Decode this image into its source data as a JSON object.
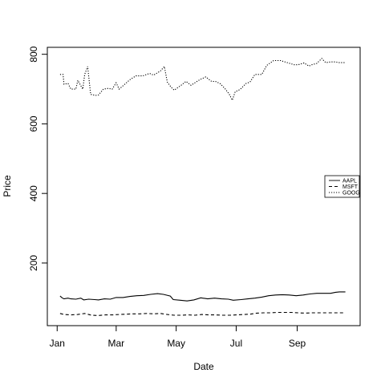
{
  "chart_data": {
    "type": "line",
    "title": "",
    "xlabel": "Date",
    "ylabel": "Price",
    "x_ticks": [
      "Jan",
      "Mar",
      "May",
      "Jul",
      "Sep"
    ],
    "y_ticks": [
      "200",
      "400",
      "600",
      "800"
    ],
    "ylim": [
      20,
      820
    ],
    "grid": false,
    "legend_position": "right",
    "series": [
      {
        "name": "AAPL",
        "line_style": "solid",
        "points": [
          [
            "2016-01-04",
            105
          ],
          [
            "2016-01-06",
            100
          ],
          [
            "2016-01-08",
            97
          ],
          [
            "2016-01-12",
            99
          ],
          [
            "2016-01-15",
            97
          ],
          [
            "2016-01-20",
            96
          ],
          [
            "2016-01-25",
            99
          ],
          [
            "2016-01-28",
            94
          ],
          [
            "2016-02-02",
            96
          ],
          [
            "2016-02-08",
            95
          ],
          [
            "2016-02-12",
            94
          ],
          [
            "2016-02-18",
            97
          ],
          [
            "2016-02-24",
            96
          ],
          [
            "2016-03-01",
            101
          ],
          [
            "2016-03-08",
            101
          ],
          [
            "2016-03-15",
            104
          ],
          [
            "2016-03-22",
            106
          ],
          [
            "2016-03-29",
            107
          ],
          [
            "2016-04-05",
            110
          ],
          [
            "2016-04-12",
            112
          ],
          [
            "2016-04-18",
            110
          ],
          [
            "2016-04-25",
            105
          ],
          [
            "2016-04-28",
            95
          ],
          [
            "2016-05-05",
            93
          ],
          [
            "2016-05-12",
            91
          ],
          [
            "2016-05-19",
            94
          ],
          [
            "2016-05-26",
            100
          ],
          [
            "2016-06-02",
            97
          ],
          [
            "2016-06-09",
            99
          ],
          [
            "2016-06-16",
            97
          ],
          [
            "2016-06-23",
            96
          ],
          [
            "2016-06-28",
            93
          ],
          [
            "2016-07-06",
            95
          ],
          [
            "2016-07-13",
            97
          ],
          [
            "2016-07-20",
            99
          ],
          [
            "2016-07-27",
            102
          ],
          [
            "2016-08-03",
            106
          ],
          [
            "2016-08-10",
            108
          ],
          [
            "2016-08-17",
            109
          ],
          [
            "2016-08-24",
            108
          ],
          [
            "2016-08-31",
            106
          ],
          [
            "2016-09-07",
            108
          ],
          [
            "2016-09-14",
            111
          ],
          [
            "2016-09-21",
            113
          ],
          [
            "2016-09-28",
            113
          ],
          [
            "2016-10-05",
            113
          ],
          [
            "2016-10-10",
            116
          ],
          [
            "2016-10-14",
            117
          ],
          [
            "2016-10-17",
            117
          ],
          [
            "2016-10-20",
            117
          ]
        ]
      },
      {
        "name": "MSFT",
        "line_style": "dashed",
        "points": [
          [
            "2016-01-04",
            55
          ],
          [
            "2016-01-08",
            52
          ],
          [
            "2016-01-15",
            51
          ],
          [
            "2016-01-22",
            52
          ],
          [
            "2016-01-29",
            55
          ],
          [
            "2016-02-05",
            50
          ],
          [
            "2016-02-12",
            49
          ],
          [
            "2016-02-19",
            51
          ],
          [
            "2016-02-26",
            51
          ],
          [
            "2016-03-04",
            52
          ],
          [
            "2016-03-11",
            53
          ],
          [
            "2016-03-18",
            54
          ],
          [
            "2016-03-25",
            54
          ],
          [
            "2016-04-01",
            55
          ],
          [
            "2016-04-08",
            54
          ],
          [
            "2016-04-15",
            55
          ],
          [
            "2016-04-22",
            52
          ],
          [
            "2016-04-29",
            50
          ],
          [
            "2016-05-06",
            50
          ],
          [
            "2016-05-13",
            51
          ],
          [
            "2016-05-20",
            50
          ],
          [
            "2016-05-27",
            52
          ],
          [
            "2016-06-03",
            51
          ],
          [
            "2016-06-10",
            51
          ],
          [
            "2016-06-17",
            50
          ],
          [
            "2016-06-24",
            50
          ],
          [
            "2016-07-01",
            51
          ],
          [
            "2016-07-08",
            52
          ],
          [
            "2016-07-15",
            53
          ],
          [
            "2016-07-22",
            56
          ],
          [
            "2016-07-29",
            57
          ],
          [
            "2016-08-05",
            57
          ],
          [
            "2016-08-12",
            58
          ],
          [
            "2016-08-19",
            58
          ],
          [
            "2016-08-26",
            58
          ],
          [
            "2016-09-02",
            57
          ],
          [
            "2016-09-09",
            56
          ],
          [
            "2016-09-16",
            57
          ],
          [
            "2016-09-23",
            57
          ],
          [
            "2016-09-30",
            57
          ],
          [
            "2016-10-07",
            57
          ],
          [
            "2016-10-14",
            57
          ],
          [
            "2016-10-20",
            57
          ]
        ]
      },
      {
        "name": "GOOG",
        "line_style": "dotted",
        "points": [
          [
            "2016-01-04",
            742
          ],
          [
            "2016-01-07",
            742
          ],
          [
            "2016-01-08",
            714
          ],
          [
            "2016-01-12",
            716
          ],
          [
            "2016-01-15",
            700
          ],
          [
            "2016-01-20",
            700
          ],
          [
            "2016-01-22",
            725
          ],
          [
            "2016-01-27",
            700
          ],
          [
            "2016-01-29",
            742
          ],
          [
            "2016-02-01",
            765
          ],
          [
            "2016-02-04",
            685
          ],
          [
            "2016-02-09",
            682
          ],
          [
            "2016-02-12",
            683
          ],
          [
            "2016-02-17",
            700
          ],
          [
            "2016-02-22",
            702
          ],
          [
            "2016-02-26",
            700
          ],
          [
            "2016-03-01",
            718
          ],
          [
            "2016-03-04",
            700
          ],
          [
            "2016-03-09",
            712
          ],
          [
            "2016-03-15",
            727
          ],
          [
            "2016-03-21",
            738
          ],
          [
            "2016-03-28",
            738
          ],
          [
            "2016-04-04",
            745
          ],
          [
            "2016-04-08",
            740
          ],
          [
            "2016-04-15",
            752
          ],
          [
            "2016-04-19",
            765
          ],
          [
            "2016-04-22",
            720
          ],
          [
            "2016-04-26",
            705
          ],
          [
            "2016-04-29",
            697
          ],
          [
            "2016-05-06",
            711
          ],
          [
            "2016-05-11",
            722
          ],
          [
            "2016-05-16",
            711
          ],
          [
            "2016-05-20",
            718
          ],
          [
            "2016-05-25",
            727
          ],
          [
            "2016-05-31",
            735
          ],
          [
            "2016-06-06",
            722
          ],
          [
            "2016-06-10",
            722
          ],
          [
            "2016-06-15",
            715
          ],
          [
            "2016-06-20",
            700
          ],
          [
            "2016-06-24",
            685
          ],
          [
            "2016-06-27",
            668
          ],
          [
            "2016-06-30",
            692
          ],
          [
            "2016-07-05",
            699
          ],
          [
            "2016-07-11",
            716
          ],
          [
            "2016-07-15",
            720
          ],
          [
            "2016-07-20",
            742
          ],
          [
            "2016-07-27",
            742
          ],
          [
            "2016-08-01",
            768
          ],
          [
            "2016-08-08",
            782
          ],
          [
            "2016-08-15",
            782
          ],
          [
            "2016-08-22",
            776
          ],
          [
            "2016-08-29",
            770
          ],
          [
            "2016-09-02",
            770
          ],
          [
            "2016-09-08",
            775
          ],
          [
            "2016-09-13",
            766
          ],
          [
            "2016-09-16",
            770
          ],
          [
            "2016-09-21",
            774
          ],
          [
            "2016-09-26",
            788
          ],
          [
            "2016-09-30",
            776
          ],
          [
            "2016-10-05",
            778
          ],
          [
            "2016-10-10",
            778
          ],
          [
            "2016-10-14",
            776
          ],
          [
            "2016-10-20",
            776
          ]
        ]
      }
    ]
  }
}
